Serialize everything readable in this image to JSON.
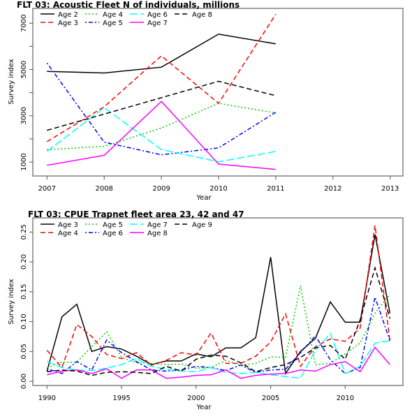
{
  "chart_data": [
    {
      "type": "line",
      "title": "FLT 03: Acoustic Fleet   N of individuals, millions",
      "xlabel": "Year",
      "ylabel": "Survey index",
      "xlim": [
        2007,
        2013
      ],
      "ylim": [
        500,
        7500
      ],
      "x_ticks": [
        2007,
        2008,
        2009,
        2010,
        2011,
        2012,
        2013
      ],
      "y_ticks": [
        1000,
        2000,
        3000,
        4000,
        5000,
        6000,
        7000
      ],
      "y_tick_labels": [
        "1000",
        "",
        "3000",
        "",
        "5000",
        "",
        "7000"
      ],
      "legend_position": "top-left",
      "x": [
        2007,
        2008,
        2009,
        2010,
        2011
      ],
      "series": [
        {
          "name": "Age 2",
          "color": "#000000",
          "dash": "solid",
          "values": [
            4920,
            4850,
            5100,
            6530,
            6110
          ]
        },
        {
          "name": "Age 3",
          "color": "#ff0000",
          "dash": "dashed",
          "values": [
            1880,
            3390,
            5590,
            3540,
            7390
          ]
        },
        {
          "name": "Age 4",
          "color": "#00cd00",
          "dash": "dotted",
          "values": [
            1530,
            1680,
            2470,
            3540,
            3120
          ]
        },
        {
          "name": "Age 5",
          "color": "#0000ff",
          "dash": "dotdash",
          "values": [
            5280,
            1860,
            1310,
            1610,
            3150
          ]
        },
        {
          "name": "Age 6",
          "color": "#00ffff",
          "dash": "longdash",
          "values": [
            1460,
            3350,
            1540,
            1010,
            1460
          ]
        },
        {
          "name": "Age 7",
          "color": "#ff00ff",
          "dash": "solid",
          "values": [
            860,
            1290,
            3620,
            910,
            680
          ]
        },
        {
          "name": "Age 8",
          "color": "#000000",
          "dash": "dashed",
          "values": [
            2370,
            3070,
            3780,
            4490,
            3870
          ]
        }
      ]
    },
    {
      "type": "line",
      "title": "FLT 03: CPUE Trapnet fleet area 23, 42 and 47",
      "xlabel": "Year",
      "ylabel": "Survey index",
      "xlim": [
        1990,
        2013
      ],
      "ylim": [
        -0.006,
        0.27
      ],
      "x_ticks": [
        1990,
        1995,
        2000,
        2005,
        2010
      ],
      "y_ticks": [
        0.0,
        0.05,
        0.1,
        0.15,
        0.2,
        0.25
      ],
      "y_tick_labels": [
        "0.00",
        "0.05",
        "0.10",
        "0.15",
        "0.20",
        "0.25"
      ],
      "legend_position": "top-left",
      "x": [
        1990,
        1991,
        1992,
        1993,
        1994,
        1995,
        1996,
        1997,
        1998,
        1999,
        2000,
        2001,
        2002,
        2003,
        2004,
        2005,
        2006,
        2007,
        2008,
        2009,
        2010,
        2011,
        2012,
        2013
      ],
      "series": [
        {
          "name": "Age 3",
          "color": "#000000",
          "dash": "solid",
          "values": [
            0.017,
            0.108,
            0.129,
            0.05,
            0.058,
            0.054,
            0.042,
            0.028,
            0.034,
            0.034,
            0.046,
            0.041,
            0.056,
            0.056,
            0.073,
            0.208,
            0.013,
            0.05,
            0.072,
            0.133,
            0.099,
            0.099,
            0.246,
            0.114
          ]
        },
        {
          "name": "Age 4",
          "color": "#ff0000",
          "dash": "dashed",
          "values": [
            0.052,
            0.023,
            0.095,
            0.075,
            0.045,
            0.038,
            0.048,
            0.027,
            0.035,
            0.048,
            0.044,
            0.081,
            0.03,
            0.03,
            0.042,
            0.066,
            0.113,
            0.025,
            0.058,
            0.071,
            0.067,
            0.089,
            0.261,
            0.068
          ]
        },
        {
          "name": "Age 5",
          "color": "#00cd00",
          "dash": "dotted",
          "values": [
            0.023,
            0.032,
            0.032,
            0.058,
            0.083,
            0.04,
            0.031,
            0.03,
            0.028,
            0.029,
            0.022,
            0.023,
            0.035,
            0.027,
            0.03,
            0.041,
            0.04,
            0.16,
            0.028,
            0.03,
            0.046,
            0.064,
            0.114,
            0.146
          ]
        },
        {
          "name": "Age 6",
          "color": "#0000ff",
          "dash": "dotdash",
          "values": [
            0.021,
            0.013,
            0.033,
            0.019,
            0.069,
            0.048,
            0.033,
            0.019,
            0.017,
            0.019,
            0.025,
            0.023,
            0.018,
            0.027,
            0.015,
            0.019,
            0.02,
            0.048,
            0.076,
            0.036,
            0.013,
            0.023,
            0.141,
            0.068
          ]
        },
        {
          "name": "Age 7",
          "color": "#00ffff",
          "dash": "longdash",
          "values": [
            0.033,
            0.023,
            0.019,
            0.018,
            0.022,
            0.028,
            0.038,
            0.025,
            0.02,
            0.017,
            0.016,
            0.023,
            0.015,
            0.013,
            0.015,
            0.011,
            0.008,
            0.005,
            0.052,
            0.08,
            0.013,
            0.025,
            0.064,
            0.068
          ]
        },
        {
          "name": "Age 8",
          "color": "#ff00ff",
          "dash": "solid",
          "values": [
            0.011,
            0.017,
            0.019,
            0.013,
            0.021,
            0.005,
            0.019,
            0.019,
            0.005,
            0.007,
            0.01,
            0.011,
            0.019,
            0.005,
            0.01,
            0.012,
            0.013,
            0.019,
            0.017,
            0.028,
            0.033,
            0.016,
            0.057,
            0.028
          ]
        },
        {
          "name": "Age 9",
          "color": "#000000",
          "dash": "dashed",
          "values": [
            0.016,
            0.019,
            0.017,
            0.01,
            0.015,
            0.016,
            0.015,
            0.013,
            0.025,
            0.017,
            0.037,
            0.044,
            0.042,
            0.031,
            0.016,
            0.023,
            0.028,
            0.04,
            0.056,
            0.06,
            0.037,
            0.103,
            0.19,
            0.105
          ]
        }
      ]
    }
  ]
}
